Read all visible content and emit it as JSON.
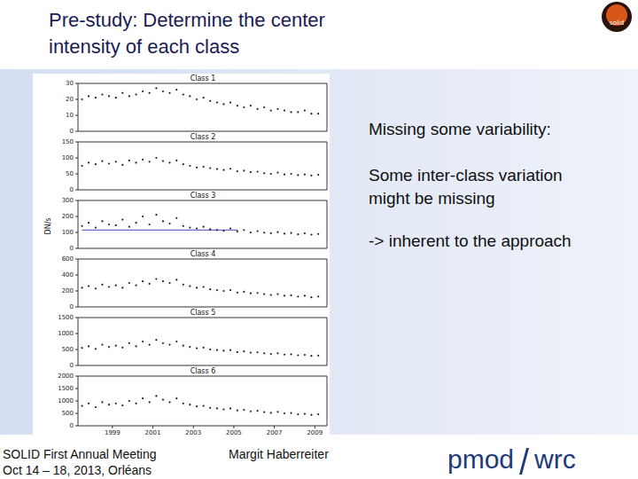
{
  "slide": {
    "title": [
      "Pre-study: Determine the center",
      "intensity of each class"
    ],
    "notes": [
      "Missing some variability:",
      "Some inter-class variation",
      "might be missing",
      "-> inherent to the approach"
    ],
    "footer": {
      "event": [
        "SOLID First Annual Meeting",
        "Oct 14 – 18, 2013, Orléans"
      ],
      "author": "Margit Haberreiter",
      "brand": [
        "pmod",
        "wrc"
      ]
    },
    "logo": "solid"
  },
  "figure": {
    "ylabel": "DN/s"
  },
  "chart_data": [
    {
      "type": "scatter",
      "title": "Class 1",
      "color": "#222222",
      "marker": "dot",
      "tick_labels": "y",
      "xlim": [
        1997.3,
        2009.6
      ],
      "xticks": [
        1999,
        2001,
        2003,
        2005,
        2007,
        2009
      ],
      "ylim": [
        0,
        30
      ],
      "yticks": [
        0,
        10,
        20,
        30
      ],
      "x": [
        1997.5,
        1997.83,
        1998.17,
        1998.5,
        1998.83,
        1999.17,
        1999.5,
        1999.83,
        2000.17,
        2000.5,
        2000.83,
        2001.17,
        2001.5,
        2001.83,
        2002.17,
        2002.5,
        2002.83,
        2003.17,
        2003.5,
        2003.83,
        2004.17,
        2004.5,
        2004.83,
        2005.17,
        2005.5,
        2005.83,
        2006.17,
        2006.5,
        2006.83,
        2007.17,
        2007.5,
        2007.83,
        2008.17,
        2008.5,
        2008.83,
        2009.17
      ],
      "values": [
        20,
        22,
        21,
        23,
        22,
        21,
        24,
        22,
        23,
        25,
        24,
        27,
        25,
        24,
        26,
        23,
        22,
        20,
        21,
        19,
        18,
        17,
        18,
        16,
        15,
        16,
        14,
        15,
        13,
        14,
        13,
        12,
        12,
        13,
        11,
        11
      ]
    },
    {
      "type": "scatter",
      "title": "Class 2",
      "color": "#222222",
      "marker": "dot",
      "tick_labels": "y",
      "xlim": [
        1997.3,
        2009.6
      ],
      "xticks": [
        1999,
        2001,
        2003,
        2005,
        2007,
        2009
      ],
      "ylim": [
        0,
        150
      ],
      "yticks": [
        0,
        50,
        100,
        150
      ],
      "x": [
        1997.5,
        1997.83,
        1998.17,
        1998.5,
        1998.83,
        1999.17,
        1999.5,
        1999.83,
        2000.17,
        2000.5,
        2000.83,
        2001.17,
        2001.5,
        2001.83,
        2002.17,
        2002.5,
        2002.83,
        2003.17,
        2003.5,
        2003.83,
        2004.17,
        2004.5,
        2004.83,
        2005.17,
        2005.5,
        2005.83,
        2006.17,
        2006.5,
        2006.83,
        2007.17,
        2007.5,
        2007.83,
        2008.17,
        2008.5,
        2008.83,
        2009.17
      ],
      "values": [
        75,
        85,
        80,
        90,
        82,
        88,
        78,
        92,
        85,
        95,
        88,
        100,
        90,
        85,
        92,
        80,
        75,
        70,
        72,
        68,
        65,
        62,
        66,
        58,
        60,
        55,
        57,
        52,
        50,
        54,
        48,
        50,
        46,
        48,
        45,
        47
      ]
    },
    {
      "type": "scatter",
      "title": "Class 3",
      "color": "#222222",
      "marker": "dot",
      "tick_labels": "y",
      "xlim": [
        1997.3,
        2009.6
      ],
      "xticks": [
        1999,
        2001,
        2003,
        2005,
        2007,
        2009
      ],
      "ylim": [
        0,
        300
      ],
      "yticks": [
        0,
        100,
        200,
        300
      ],
      "hline": {
        "y": 115,
        "x": [
          1997.5,
          2005.2
        ],
        "color": "#4444cc"
      },
      "x": [
        1997.5,
        1997.83,
        1998.17,
        1998.5,
        1998.83,
        1999.17,
        1999.5,
        1999.83,
        2000.17,
        2000.5,
        2000.83,
        2001.17,
        2001.5,
        2001.83,
        2002.17,
        2002.5,
        2002.83,
        2003.17,
        2003.5,
        2003.83,
        2004.17,
        2004.5,
        2004.83,
        2005.17,
        2005.5,
        2005.83,
        2006.17,
        2006.5,
        2006.83,
        2007.17,
        2007.5,
        2007.83,
        2008.17,
        2008.5,
        2008.83,
        2009.17
      ],
      "values": [
        140,
        160,
        130,
        170,
        150,
        145,
        180,
        135,
        160,
        200,
        150,
        210,
        170,
        155,
        190,
        140,
        130,
        125,
        135,
        120,
        115,
        110,
        125,
        105,
        115,
        100,
        108,
        98,
        95,
        102,
        92,
        96,
        88,
        94,
        86,
        90
      ]
    },
    {
      "type": "scatter",
      "title": "Class 4",
      "color": "#222222",
      "marker": "dot",
      "tick_labels": "y",
      "xlim": [
        1997.3,
        2009.6
      ],
      "xticks": [
        1999,
        2001,
        2003,
        2005,
        2007,
        2009
      ],
      "ylim": [
        0,
        600
      ],
      "yticks": [
        0,
        200,
        400,
        600
      ],
      "x": [
        1997.5,
        1997.83,
        1998.17,
        1998.5,
        1998.83,
        1999.17,
        1999.5,
        1999.83,
        2000.17,
        2000.5,
        2000.83,
        2001.17,
        2001.5,
        2001.83,
        2002.17,
        2002.5,
        2002.83,
        2003.17,
        2003.5,
        2003.83,
        2004.17,
        2004.5,
        2004.83,
        2005.17,
        2005.5,
        2005.83,
        2006.17,
        2006.5,
        2006.83,
        2007.17,
        2007.5,
        2007.83,
        2008.17,
        2008.5,
        2008.83,
        2009.17
      ],
      "values": [
        240,
        260,
        230,
        280,
        250,
        270,
        240,
        300,
        270,
        320,
        290,
        350,
        320,
        300,
        340,
        280,
        260,
        240,
        250,
        220,
        210,
        200,
        210,
        180,
        190,
        170,
        175,
        160,
        150,
        160,
        140,
        145,
        130,
        140,
        120,
        130
      ]
    },
    {
      "type": "scatter",
      "title": "Class 5",
      "color": "#222222",
      "marker": "dot",
      "tick_labels": "y",
      "xlim": [
        1997.3,
        2009.6
      ],
      "xticks": [
        1999,
        2001,
        2003,
        2005,
        2007,
        2009
      ],
      "ylim": [
        0,
        1500
      ],
      "yticks": [
        0,
        500,
        1000,
        1500
      ],
      "x": [
        1997.5,
        1997.83,
        1998.17,
        1998.5,
        1998.83,
        1999.17,
        1999.5,
        1999.83,
        2000.17,
        2000.5,
        2000.83,
        2001.17,
        2001.5,
        2001.83,
        2002.17,
        2002.5,
        2002.83,
        2003.17,
        2003.5,
        2003.83,
        2004.17,
        2004.5,
        2004.83,
        2005.17,
        2005.5,
        2005.83,
        2006.17,
        2006.5,
        2006.83,
        2007.17,
        2007.5,
        2007.83,
        2008.17,
        2008.5,
        2008.83,
        2009.17
      ],
      "values": [
        550,
        600,
        520,
        650,
        580,
        620,
        560,
        700,
        600,
        750,
        650,
        800,
        700,
        650,
        750,
        620,
        580,
        540,
        560,
        500,
        480,
        460,
        480,
        420,
        440,
        400,
        410,
        380,
        360,
        380,
        340,
        350,
        320,
        330,
        300,
        310
      ]
    },
    {
      "type": "scatter",
      "title": "Class 6",
      "color": "#222222",
      "marker": "dot",
      "xlim": [
        1997.3,
        2009.6
      ],
      "xticks": [
        1999,
        2001,
        2003,
        2005,
        2007,
        2009
      ],
      "ylim": [
        0,
        2000
      ],
      "yticks": [
        0,
        500,
        1000,
        1500,
        2000
      ],
      "x": [
        1997.5,
        1997.83,
        1998.17,
        1998.5,
        1998.83,
        1999.17,
        1999.5,
        1999.83,
        2000.17,
        2000.5,
        2000.83,
        2001.17,
        2001.5,
        2001.83,
        2002.17,
        2002.5,
        2002.83,
        2003.17,
        2003.5,
        2003.83,
        2004.17,
        2004.5,
        2004.83,
        2005.17,
        2005.5,
        2005.83,
        2006.17,
        2006.5,
        2006.83,
        2007.17,
        2007.5,
        2007.83,
        2008.17,
        2008.5,
        2008.83,
        2009.17
      ],
      "values": [
        800,
        900,
        750,
        950,
        850,
        900,
        820,
        1000,
        900,
        1100,
        950,
        1200,
        1050,
        950,
        1100,
        900,
        850,
        780,
        800,
        720,
        700,
        660,
        700,
        620,
        640,
        580,
        600,
        550,
        520,
        560,
        500,
        510,
        460,
        480,
        440,
        460
      ]
    }
  ]
}
